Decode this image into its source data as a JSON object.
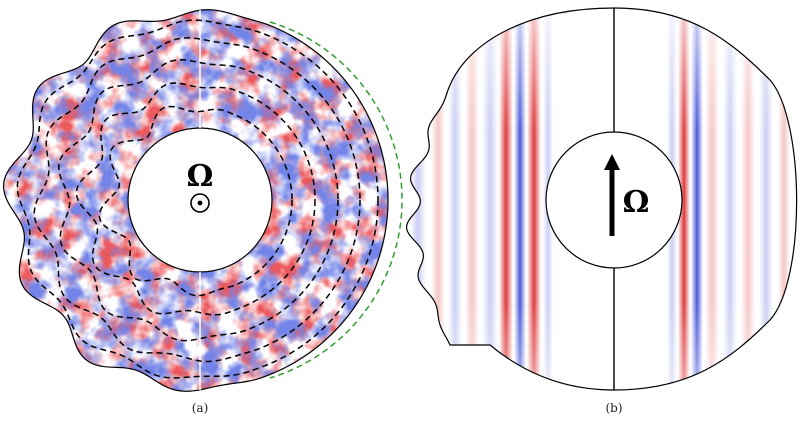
{
  "panels": [
    {
      "id": "a",
      "caption": "(a)",
      "symbol": "Ω",
      "rotation_axis_glyph": "circled-dot-icon",
      "view": "equatorial"
    },
    {
      "id": "b",
      "caption": "(b)",
      "symbol": "Ω",
      "rotation_axis_glyph": "up-arrow-icon",
      "view": "meridional"
    }
  ],
  "colors": {
    "positive": "#d7191c",
    "negative": "#2b3bcf",
    "background": "#ffffff",
    "outline": "#000000",
    "contour": "#000000",
    "contour_outer": "#2e9e2e"
  }
}
